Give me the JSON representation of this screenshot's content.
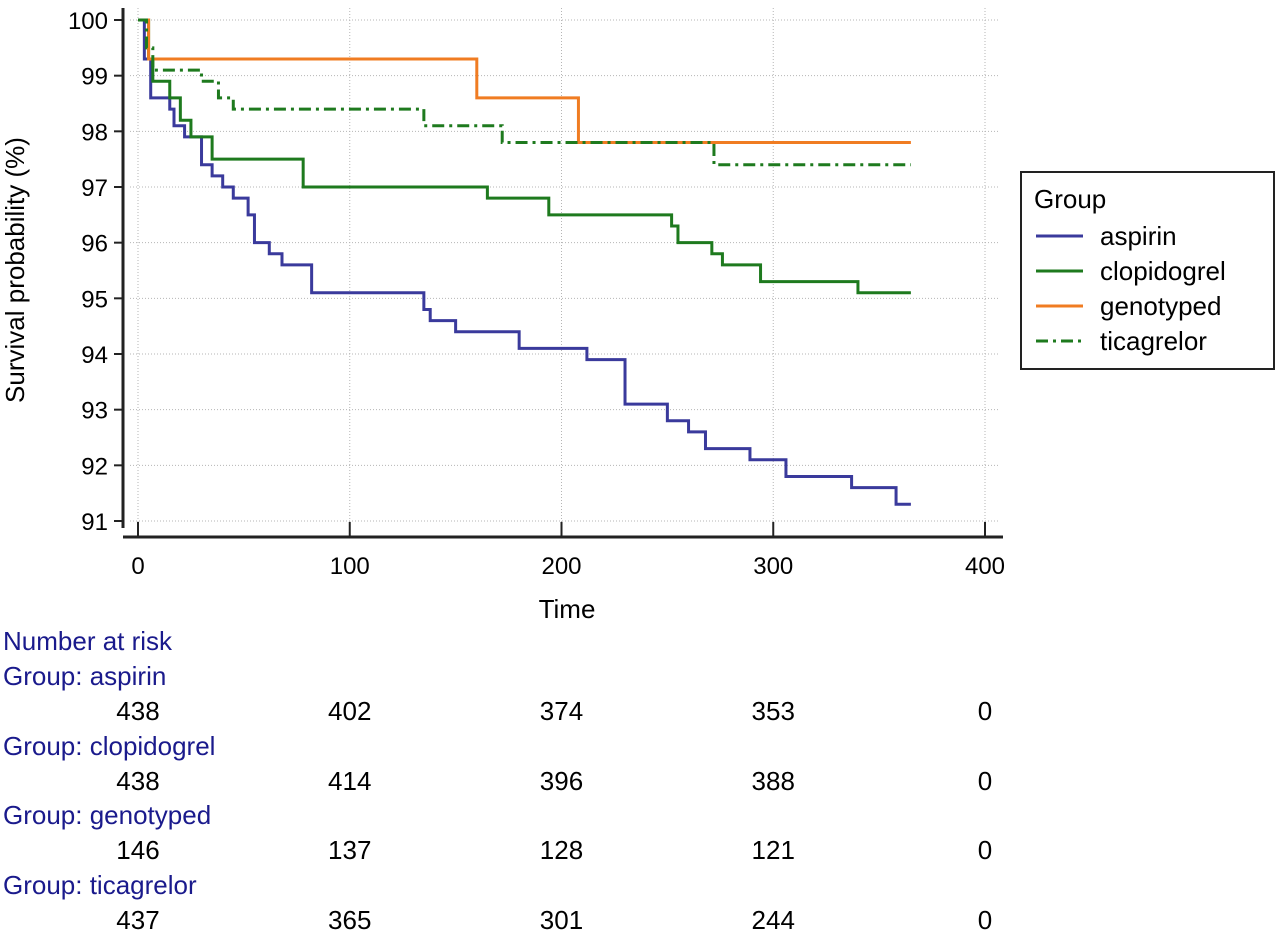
{
  "chart_data": {
    "type": "line",
    "subtype": "kaplan-meier step",
    "title": "",
    "xlabel": "Time",
    "ylabel": "Survival probability (%)",
    "xlim": [
      0,
      400
    ],
    "ylim": [
      91,
      100
    ],
    "xticks": [
      "0",
      "100",
      "200",
      "300",
      "400"
    ],
    "yticks": [
      "100",
      "99",
      "98",
      "97",
      "96",
      "95",
      "94",
      "93",
      "92",
      "91"
    ],
    "grid": true,
    "legend": {
      "title": "Group",
      "placement": "right"
    },
    "series": [
      {
        "name": "aspirin",
        "color": "#3a3a9c",
        "dash": "solid",
        "points": [
          [
            0,
            100
          ],
          [
            3,
            99.3
          ],
          [
            6,
            98.6
          ],
          [
            15,
            98.4
          ],
          [
            17,
            98.1
          ],
          [
            22,
            97.9
          ],
          [
            30,
            97.4
          ],
          [
            35,
            97.2
          ],
          [
            40,
            97.0
          ],
          [
            45,
            96.8
          ],
          [
            52,
            96.5
          ],
          [
            55,
            96.0
          ],
          [
            62,
            95.8
          ],
          [
            68,
            95.6
          ],
          [
            82,
            95.1
          ],
          [
            135,
            94.8
          ],
          [
            138,
            94.6
          ],
          [
            150,
            94.4
          ],
          [
            180,
            94.1
          ],
          [
            212,
            93.9
          ],
          [
            230,
            93.1
          ],
          [
            250,
            92.8
          ],
          [
            260,
            92.6
          ],
          [
            268,
            92.3
          ],
          [
            289,
            92.1
          ],
          [
            306,
            91.8
          ],
          [
            337,
            91.6
          ],
          [
            358,
            91.3
          ],
          [
            365,
            91.3
          ]
        ]
      },
      {
        "name": "clopidogrel",
        "color": "#1e7a1e",
        "dash": "solid",
        "points": [
          [
            0,
            100
          ],
          [
            5,
            99.3
          ],
          [
            7,
            98.9
          ],
          [
            15,
            98.6
          ],
          [
            20,
            98.2
          ],
          [
            25,
            97.9
          ],
          [
            35,
            97.5
          ],
          [
            78,
            97.0
          ],
          [
            165,
            96.8
          ],
          [
            194,
            96.5
          ],
          [
            252,
            96.3
          ],
          [
            255,
            96.0
          ],
          [
            271,
            95.8
          ],
          [
            276,
            95.6
          ],
          [
            294,
            95.3
          ],
          [
            340,
            95.1
          ],
          [
            365,
            95.1
          ]
        ]
      },
      {
        "name": "genotyped",
        "color": "#f07c22",
        "dash": "solid",
        "points": [
          [
            0,
            100
          ],
          [
            5,
            99.3
          ],
          [
            160,
            98.6
          ],
          [
            208,
            97.8
          ],
          [
            365,
            97.8
          ]
        ]
      },
      {
        "name": "ticagrelor",
        "color": "#1e7a1e",
        "dash": "dashdot",
        "points": [
          [
            0,
            100
          ],
          [
            4,
            99.5
          ],
          [
            7,
            99.1
          ],
          [
            30,
            98.9
          ],
          [
            38,
            98.6
          ],
          [
            45,
            98.4
          ],
          [
            135,
            98.1
          ],
          [
            172,
            97.8
          ],
          [
            272,
            97.4
          ],
          [
            365,
            97.4
          ]
        ]
      }
    ]
  },
  "risk_table": {
    "title": "Number at risk",
    "time_points": [
      0,
      100,
      200,
      300,
      400
    ],
    "groups": [
      {
        "label": "Group: aspirin",
        "counts": [
          "438",
          "402",
          "374",
          "353",
          "0"
        ]
      },
      {
        "label": "Group: clopidogrel",
        "counts": [
          "438",
          "414",
          "396",
          "388",
          "0"
        ]
      },
      {
        "label": "Group: genotyped",
        "counts": [
          "146",
          "137",
          "128",
          "121",
          "0"
        ]
      },
      {
        "label": "Group: ticagrelor",
        "counts": [
          "437",
          "365",
          "301",
          "244",
          "0"
        ]
      }
    ]
  }
}
